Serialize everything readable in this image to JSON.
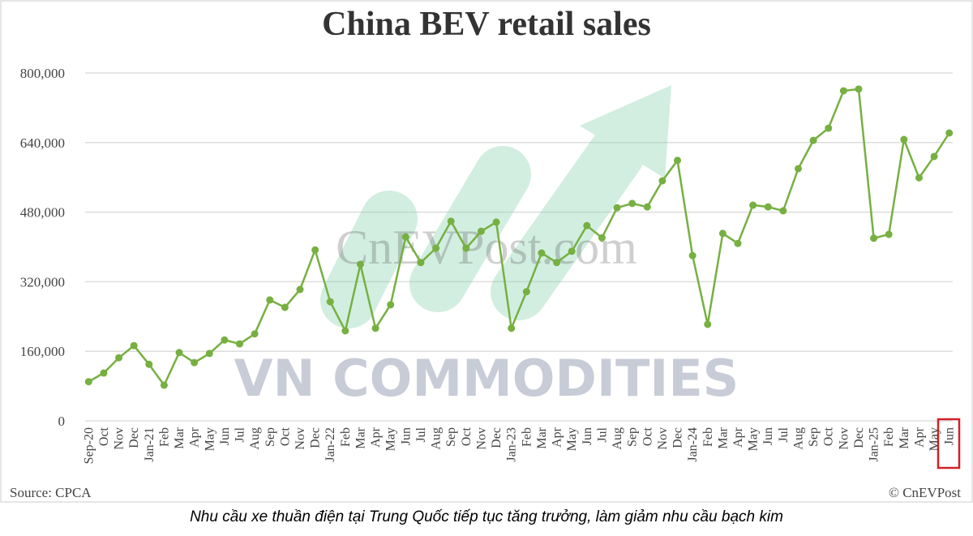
{
  "chart_data": {
    "type": "line",
    "title": "China BEV retail sales",
    "categories": [
      "Sep-20",
      "Oct",
      "Nov",
      "Dec",
      "Jan-21",
      "Feb",
      "Mar",
      "Apr",
      "May",
      "Jun",
      "Jul",
      "Aug",
      "Sep",
      "Oct",
      "Nov",
      "Dec",
      "Jan-22",
      "Feb",
      "Mar",
      "Apr",
      "May",
      "Jun",
      "Jul",
      "Aug",
      "Sep",
      "Oct",
      "Nov",
      "Dec",
      "Jan-23",
      "Feb",
      "Mar",
      "Apr",
      "May",
      "Jun",
      "Jul",
      "Aug",
      "Sep",
      "Oct",
      "Nov",
      "Dec",
      "Jan-24",
      "Feb",
      "Mar",
      "Apr",
      "May",
      "Jun",
      "Jul",
      "Aug",
      "Sep",
      "Oct",
      "Nov",
      "Dec",
      "Jan-25",
      "Feb",
      "Mar",
      "Apr",
      "May",
      "Jun"
    ],
    "values": [
      90000,
      110000,
      145000,
      173000,
      130000,
      82000,
      157000,
      134000,
      155000,
      186000,
      177000,
      200000,
      278000,
      261000,
      302000,
      393000,
      274000,
      207000,
      360000,
      213000,
      267000,
      423000,
      364000,
      397000,
      459000,
      397000,
      436000,
      457000,
      213000,
      297000,
      386000,
      364000,
      390000,
      449000,
      421000,
      490000,
      500000,
      492000,
      552000,
      599000,
      380000,
      222000,
      431000,
      408000,
      496000,
      492000,
      483000,
      580000,
      645000,
      673000,
      759000,
      763000,
      420000,
      429000,
      647000,
      559000,
      608000,
      662000
    ],
    "color": "#76b041",
    "ylim": [
      0,
      800000
    ],
    "yticks": [
      0,
      {
        "value": 160000,
        "label": "160,000"
      },
      {
        "value": 320000,
        "label": "320,000"
      },
      {
        "value": 480000,
        "label": "480,000"
      },
      {
        "value": 640000,
        "label": "640,000"
      },
      {
        "value": 800000,
        "label": "800,000"
      }
    ],
    "grid": true,
    "source": "Source: CPCA",
    "credit": "© CnEVPost",
    "watermarks": [
      "CnEVPost.com",
      "VN COMMODITIES"
    ]
  },
  "caption": "Nhu cầu xe thuần điện tại Trung Quốc tiếp tục tăng trưởng, làm giảm nhu cầu bạch kim"
}
